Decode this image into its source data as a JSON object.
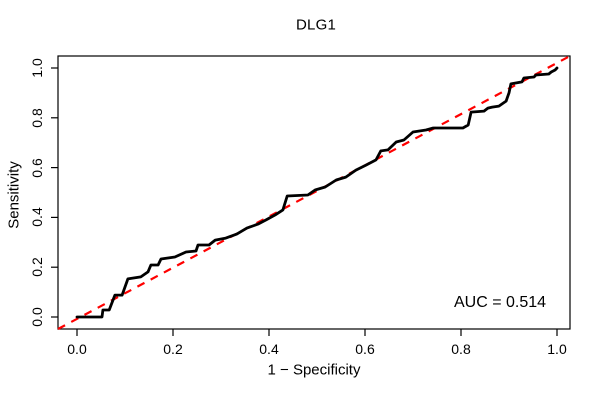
{
  "chart_data": {
    "type": "line",
    "title": "DLG1",
    "xlabel": "1 − Specificity",
    "ylabel": "Sensitivity",
    "xlim": [
      0.0,
      1.0
    ],
    "ylim": [
      0.0,
      1.0
    ],
    "x_ticks": [
      0.0,
      0.2,
      0.4,
      0.6,
      0.8,
      1.0
    ],
    "x_tick_labels": [
      "0.0",
      "0.2",
      "0.4",
      "0.6",
      "0.8",
      "1.0"
    ],
    "y_ticks": [
      0.0,
      0.2,
      0.4,
      0.6,
      0.8,
      1.0
    ],
    "y_tick_labels": [
      "0.0",
      "0.2",
      "0.4",
      "0.6",
      "0.8",
      "1.0"
    ],
    "grid": false,
    "legend": "none",
    "auc": 0.514,
    "annotations": [
      {
        "text": "AUC = 0.514",
        "x": 0.885,
        "y": 0.055
      }
    ],
    "colors": {
      "curve": "#000000",
      "reference": "#ff0000",
      "axis": "#000000",
      "background": "#ffffff"
    },
    "series": [
      {
        "name": "ROC curve",
        "style": "solid",
        "color": "#000000",
        "points": [
          [
            0.0,
            0.0
          ],
          [
            0.052,
            0.0
          ],
          [
            0.054,
            0.028
          ],
          [
            0.067,
            0.028
          ],
          [
            0.079,
            0.088
          ],
          [
            0.094,
            0.088
          ],
          [
            0.106,
            0.153
          ],
          [
            0.133,
            0.161
          ],
          [
            0.148,
            0.181
          ],
          [
            0.154,
            0.209
          ],
          [
            0.169,
            0.209
          ],
          [
            0.175,
            0.233
          ],
          [
            0.204,
            0.241
          ],
          [
            0.227,
            0.261
          ],
          [
            0.248,
            0.265
          ],
          [
            0.252,
            0.289
          ],
          [
            0.275,
            0.289
          ],
          [
            0.288,
            0.309
          ],
          [
            0.31,
            0.317
          ],
          [
            0.333,
            0.333
          ],
          [
            0.354,
            0.357
          ],
          [
            0.377,
            0.373
          ],
          [
            0.394,
            0.39
          ],
          [
            0.413,
            0.41
          ],
          [
            0.429,
            0.43
          ],
          [
            0.438,
            0.486
          ],
          [
            0.481,
            0.49
          ],
          [
            0.496,
            0.51
          ],
          [
            0.517,
            0.522
          ],
          [
            0.54,
            0.55
          ],
          [
            0.56,
            0.562
          ],
          [
            0.581,
            0.59
          ],
          [
            0.602,
            0.61
          ],
          [
            0.623,
            0.631
          ],
          [
            0.633,
            0.667
          ],
          [
            0.648,
            0.671
          ],
          [
            0.665,
            0.703
          ],
          [
            0.681,
            0.711
          ],
          [
            0.7,
            0.743
          ],
          [
            0.727,
            0.751
          ],
          [
            0.742,
            0.759
          ],
          [
            0.804,
            0.759
          ],
          [
            0.815,
            0.771
          ],
          [
            0.821,
            0.823
          ],
          [
            0.848,
            0.827
          ],
          [
            0.856,
            0.839
          ],
          [
            0.865,
            0.843
          ],
          [
            0.879,
            0.847
          ],
          [
            0.888,
            0.859
          ],
          [
            0.894,
            0.867
          ],
          [
            0.9,
            0.9
          ],
          [
            0.904,
            0.936
          ],
          [
            0.927,
            0.944
          ],
          [
            0.931,
            0.96
          ],
          [
            0.952,
            0.964
          ],
          [
            0.956,
            0.972
          ],
          [
            0.983,
            0.976
          ],
          [
            0.988,
            0.984
          ],
          [
            0.996,
            0.992
          ],
          [
            1.0,
            1.0
          ]
        ]
      },
      {
        "name": "Chance diagonal",
        "style": "dashed",
        "color": "#ff0000",
        "points": [
          [
            0.0,
            0.0
          ],
          [
            1.0,
            1.0
          ]
        ]
      }
    ]
  }
}
